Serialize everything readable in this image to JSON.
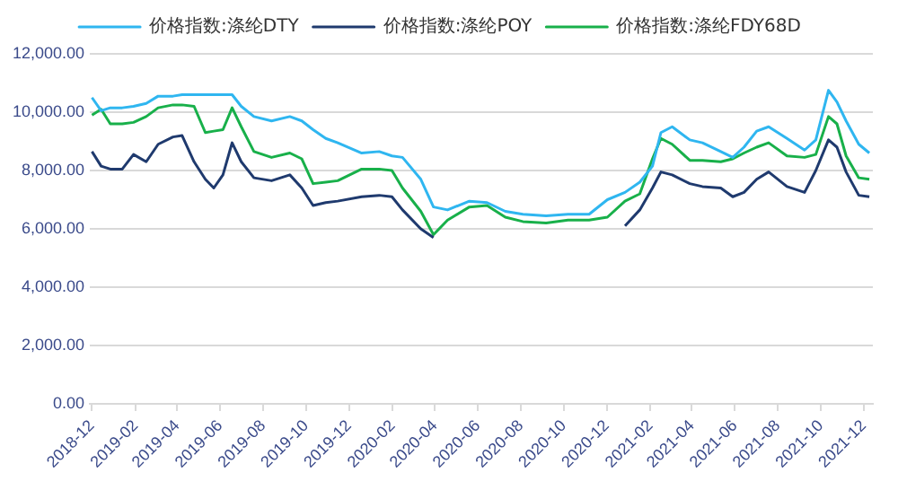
{
  "chart_data": {
    "type": "line",
    "x": [
      "2018-12-01",
      "2018-12-14",
      "2018-12-27",
      "2019-01-13",
      "2019-01-29",
      "2019-02-16",
      "2019-03-05",
      "2019-03-26",
      "2019-04-08",
      "2019-04-25",
      "2019-05-11",
      "2019-05-23",
      "2019-06-05",
      "2019-06-18",
      "2019-07-01",
      "2019-07-19",
      "2019-08-13",
      "2019-09-08",
      "2019-09-25",
      "2019-10-11",
      "2019-10-29",
      "2019-11-15",
      "2019-12-19",
      "2020-01-13",
      "2020-01-31",
      "2020-02-15",
      "2020-03-12",
      "2020-03-30",
      "2020-04-19",
      "2020-05-20",
      "2020-06-14",
      "2020-07-10",
      "2020-08-04",
      "2020-09-06",
      "2020-10-07",
      "2020-11-06",
      "2020-12-02",
      "2020-12-27",
      "2021-01-17",
      "2021-02-04",
      "2021-02-16",
      "2021-03-04",
      "2021-03-29",
      "2021-04-16",
      "2021-05-12",
      "2021-05-29",
      "2021-06-14",
      "2021-07-02",
      "2021-07-19",
      "2021-08-14",
      "2021-09-08",
      "2021-09-24",
      "2021-10-12",
      "2021-10-24",
      "2021-11-06",
      "2021-11-24",
      "2021-12-09"
    ],
    "series": [
      {
        "name": "价格指数:涤纶DTY",
        "color": "#2fb6f0",
        "values": [
          10500,
          10050,
          10150,
          10150,
          10200,
          10300,
          10550,
          10550,
          10600,
          10600,
          10600,
          10600,
          10600,
          10600,
          10200,
          9850,
          9700,
          9850,
          9700,
          9400,
          9100,
          8950,
          8600,
          8650,
          8500,
          8450,
          7700,
          6750,
          6650,
          6950,
          6900,
          6600,
          6500,
          6450,
          6500,
          6500,
          7000,
          7250,
          7600,
          8150,
          9300,
          9500,
          9050,
          8950,
          8650,
          8450,
          8800,
          9350,
          9500,
          9100,
          8700,
          9050,
          10750,
          10350,
          9700,
          8900,
          8600
        ]
      },
      {
        "name": "价格指数:涤纶POY",
        "color": "#1f3a6e",
        "values": [
          8650,
          8150,
          8050,
          8050,
          8550,
          8300,
          8900,
          9150,
          9200,
          8300,
          7700,
          7400,
          7850,
          8950,
          8300,
          7750,
          7650,
          7850,
          7400,
          6800,
          6900,
          6950,
          7100,
          7150,
          7100,
          6650,
          6000,
          5700,
          null,
          null,
          null,
          null,
          null,
          null,
          null,
          null,
          null,
          6100,
          6650,
          7400,
          7950,
          7850,
          7550,
          7450,
          7400,
          7100,
          7250,
          7700,
          7950,
          7450,
          7250,
          8000,
          9050,
          8800,
          7950,
          7150,
          7100
        ]
      },
      {
        "name": "价格指数:涤纶FDY68D",
        "color": "#18b04a",
        "values": [
          9900,
          10100,
          9600,
          9600,
          9650,
          9850,
          10150,
          10250,
          10250,
          10200,
          9300,
          9350,
          9400,
          10150,
          9500,
          8650,
          8450,
          8600,
          8400,
          7550,
          7600,
          7650,
          8050,
          8050,
          8000,
          7400,
          6600,
          5800,
          6300,
          6750,
          6800,
          6400,
          6250,
          6200,
          6300,
          6300,
          6400,
          6950,
          7200,
          8400,
          9100,
          8900,
          8350,
          8350,
          8300,
          8400,
          8600,
          8800,
          8950,
          8500,
          8450,
          8550,
          9850,
          9600,
          8500,
          7750,
          7700
        ]
      }
    ],
    "xlim": [
      "2018-11-28",
      "2021-12-14"
    ],
    "xticks": [
      "2018-12",
      "2019-02",
      "2019-04",
      "2019-06",
      "2019-08",
      "2019-10",
      "2019-12",
      "2020-02",
      "2020-04",
      "2020-06",
      "2020-08",
      "2020-10",
      "2020-12",
      "2021-02",
      "2021-04",
      "2021-06",
      "2021-08",
      "2021-10",
      "2021-12"
    ],
    "ylim": [
      0,
      12000
    ],
    "yticks": [
      {
        "value": 0,
        "label": "0.00"
      },
      {
        "value": 2000,
        "label": "2,000.00"
      },
      {
        "value": 4000,
        "label": "4,000.00"
      },
      {
        "value": 6000,
        "label": "6,000.00"
      },
      {
        "value": 8000,
        "label": "8,000.00"
      },
      {
        "value": 10000,
        "label": "10,000.00"
      },
      {
        "value": 12000,
        "label": "12,000.00"
      }
    ],
    "grid": "y",
    "legend": "top",
    "marker": "none",
    "line_style": "solid"
  }
}
